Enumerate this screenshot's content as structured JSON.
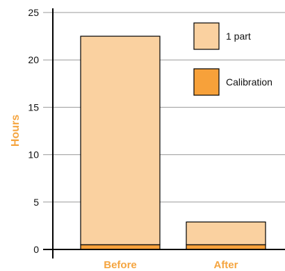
{
  "chart_data": {
    "type": "bar",
    "stacked": true,
    "categories": [
      "Before",
      "After"
    ],
    "series": [
      {
        "name": "Calibration",
        "values": [
          0.5,
          0.5
        ],
        "color": "#F7A13A"
      },
      {
        "name": "1 part",
        "values": [
          22.0,
          2.4
        ],
        "color": "#FAD1A0"
      }
    ],
    "ylabel": "Hours",
    "xlabel": "",
    "ylim": [
      0,
      25
    ],
    "yticks": [
      0,
      5,
      10,
      15,
      20,
      25
    ],
    "grid": true,
    "legend": "top-right",
    "label_color": "#F5A540"
  }
}
